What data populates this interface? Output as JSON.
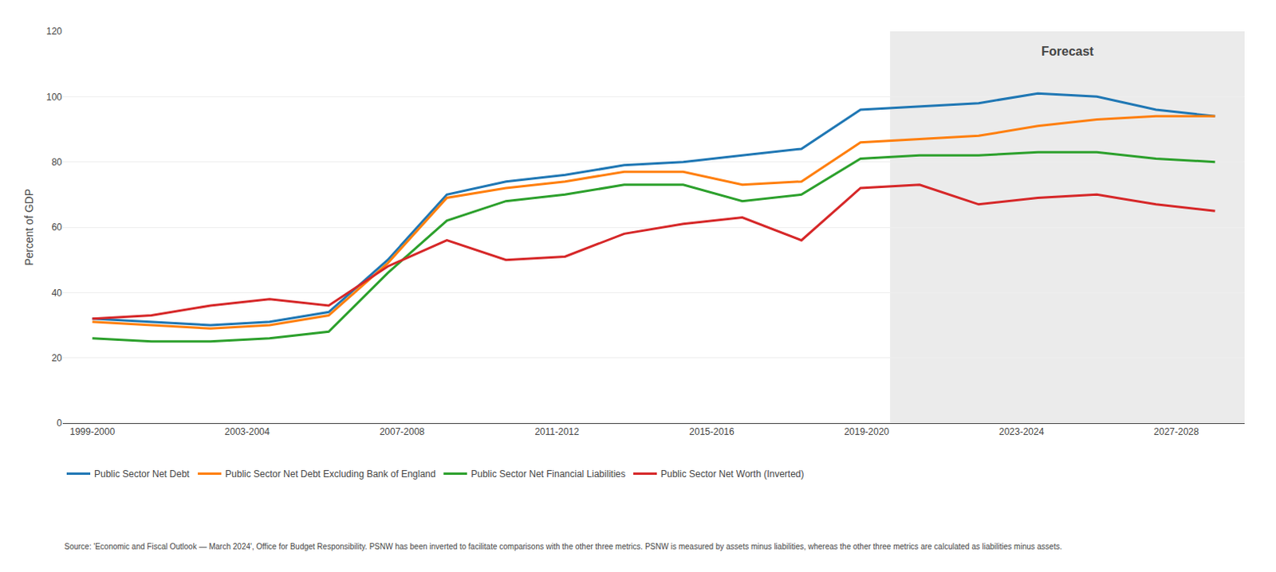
{
  "chart_data": {
    "type": "line",
    "x": [
      1999,
      2000.526316,
      2002.052632,
      2003.578947,
      2005.105263,
      2006.631579,
      2008.157895,
      2009.684211,
      2011.210526,
      2012.736842,
      2014.263158,
      2015.789474,
      2017.315789,
      2018.842105,
      2020.368421,
      2021.894737,
      2023.421053,
      2024.947368,
      2026.473684,
      2028
    ],
    "series": [
      {
        "name": "Public Sector Net Debt",
        "values": [
          32,
          31,
          30,
          31,
          34,
          50,
          70,
          74,
          76,
          79,
          80,
          82,
          84,
          96,
          97,
          98,
          101,
          100,
          96,
          94
        ]
      },
      {
        "name": "Public Sector Net Debt Excluding Bank of England",
        "values": [
          31,
          30,
          29,
          30,
          33,
          49,
          69,
          72,
          74,
          77,
          77,
          73,
          74,
          86,
          87,
          88,
          91,
          93,
          94,
          94
        ]
      },
      {
        "name": "Public Sector Net Financial Liabilities",
        "values": [
          26,
          25,
          25,
          26,
          28,
          46,
          62,
          68,
          70,
          73,
          73,
          68,
          70,
          81,
          82,
          82,
          83,
          83,
          81,
          80
        ]
      },
      {
        "name": "Public Sector Net Worth (Inverted)",
        "values": [
          32,
          33,
          36,
          38,
          36,
          48,
          56,
          50,
          51,
          58,
          61,
          63,
          56,
          72,
          73,
          67,
          69,
          70,
          67,
          65
        ]
      }
    ],
    "forecast_region": [
      2019.605263,
      2028.763158
    ],
    "ylabel": "Percent of GDP",
    "xlim": [
      1998.236842,
      2028.763158
    ],
    "xticks": [
      {
        "value": 1999,
        "label": "1999-2000"
      },
      {
        "value": 2003,
        "label": "2003-2004"
      },
      {
        "value": 2007,
        "label": "2007-2008"
      },
      {
        "value": 2011,
        "label": "2011-2012"
      },
      {
        "value": 2015,
        "label": "2015-2016"
      },
      {
        "value": 2019,
        "label": "2019-2020"
      },
      {
        "value": 2023,
        "label": "2023-2024"
      },
      {
        "value": 2027,
        "label": "2027-2028"
      }
    ],
    "ylim": [
      0,
      120
    ],
    "yticks": [
      0,
      20,
      40,
      60,
      80,
      100,
      120
    ],
    "annotations": [
      {
        "text": "Forecast"
      },
      {
        "text": "Source: 'Economic and Fiscal Outlook — March 2024', Office for Budget Responsibility. PSNW has been inverted to facilitate comparisons with the other three metrics. PSNW is measured by assets minus liabilities, whereas the other three metrics are calculated as liabilities minus assets."
      }
    ],
    "grid": true,
    "legend": "bottom"
  }
}
